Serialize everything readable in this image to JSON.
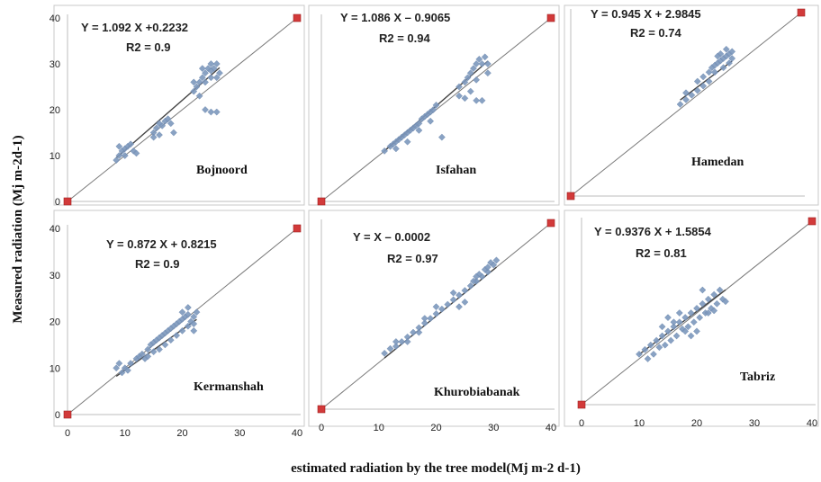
{
  "figure": {
    "ylabel": "Measured radiation (Mj m-2d-1)",
    "xlabel": "estimated radiation by the tree model(Mj m-2 d-1)"
  },
  "chart_data": [
    {
      "type": "scatter",
      "station": "Bojnoord",
      "equation": "Y = 1.092 X +0.2232",
      "r2": "R2 = 0.9",
      "fit": {
        "slope": 1.092,
        "intercept": 0.2232
      },
      "xlim": [
        0,
        40
      ],
      "ylim": [
        0,
        40
      ],
      "xticks": [],
      "yticks": [
        "0",
        "10",
        "20",
        "30",
        "40"
      ],
      "points": [
        [
          8.5,
          9
        ],
        [
          9,
          10
        ],
        [
          9.5,
          11
        ],
        [
          10,
          11.5
        ],
        [
          10.5,
          12
        ],
        [
          11,
          12.5
        ],
        [
          11.5,
          11
        ],
        [
          9,
          12
        ],
        [
          10,
          10
        ],
        [
          12,
          10.5
        ],
        [
          15,
          15
        ],
        [
          15.5,
          16
        ],
        [
          16,
          17
        ],
        [
          16.5,
          16.5
        ],
        [
          17,
          17.5
        ],
        [
          17.5,
          18
        ],
        [
          16,
          14.5
        ],
        [
          18,
          17
        ],
        [
          15,
          14
        ],
        [
          18.5,
          15
        ],
        [
          22,
          24
        ],
        [
          22.5,
          25
        ],
        [
          23,
          26
        ],
        [
          23.5,
          27
        ],
        [
          24,
          28
        ],
        [
          24.5,
          29
        ],
        [
          25,
          30
        ],
        [
          25.5,
          29
        ],
        [
          26,
          30
        ],
        [
          26.5,
          28
        ],
        [
          23,
          23
        ],
        [
          24,
          26
        ],
        [
          25,
          27
        ],
        [
          24,
          20
        ],
        [
          25,
          19.5
        ],
        [
          26,
          19.5
        ],
        [
          22,
          26
        ],
        [
          23.5,
          29
        ],
        [
          25,
          28.5
        ],
        [
          26,
          27
        ]
      ]
    },
    {
      "type": "scatter",
      "station": "Isfahan",
      "equation": "Y = 1.086 X – 0.9065",
      "r2": "R2 = 0.94",
      "fit": {
        "slope": 1.086,
        "intercept": -0.9065
      },
      "xlim": [
        0,
        40
      ],
      "ylim": [
        0,
        40
      ],
      "xticks": [],
      "yticks": [],
      "points": [
        [
          11,
          11
        ],
        [
          12,
          12
        ],
        [
          12.5,
          12.5
        ],
        [
          13,
          13
        ],
        [
          13.5,
          13.5
        ],
        [
          14,
          14
        ],
        [
          14.5,
          14.5
        ],
        [
          15,
          15
        ],
        [
          15.5,
          15.5
        ],
        [
          16,
          16
        ],
        [
          16.5,
          16.5
        ],
        [
          17,
          17
        ],
        [
          17.5,
          18
        ],
        [
          18,
          18.5
        ],
        [
          18.5,
          19
        ],
        [
          19,
          19.5
        ],
        [
          19.5,
          20
        ],
        [
          20,
          21
        ],
        [
          13,
          11.5
        ],
        [
          15,
          13
        ],
        [
          17,
          15.5
        ],
        [
          19,
          17.5
        ],
        [
          21,
          14
        ],
        [
          24,
          25
        ],
        [
          25,
          26
        ],
        [
          25.5,
          27
        ],
        [
          26,
          28
        ],
        [
          26.5,
          29
        ],
        [
          27,
          30
        ],
        [
          27.5,
          31
        ],
        [
          28,
          30
        ],
        [
          28.5,
          31.5
        ],
        [
          29,
          30
        ],
        [
          26,
          24
        ],
        [
          27,
          22
        ],
        [
          28,
          22
        ],
        [
          25,
          22.5
        ],
        [
          24,
          23
        ],
        [
          27,
          26.5
        ],
        [
          29,
          28
        ]
      ]
    },
    {
      "type": "scatter",
      "station": "Hamedan",
      "equation": "Y = 0.945 X + 2.9845",
      "r2": "R2 = 0.74",
      "fit": {
        "slope": 0.945,
        "intercept": 2.9845
      },
      "xlim": [
        0,
        40
      ],
      "ylim": [
        0,
        40
      ],
      "xticks": [],
      "yticks": [],
      "points": [
        [
          19,
          20
        ],
        [
          20,
          21
        ],
        [
          21,
          22
        ],
        [
          22,
          25
        ],
        [
          23,
          26
        ],
        [
          24,
          27
        ],
        [
          24.5,
          28
        ],
        [
          25,
          28.5
        ],
        [
          25.5,
          29
        ],
        [
          26,
          29.5
        ],
        [
          26.5,
          30
        ],
        [
          27,
          30.5
        ],
        [
          27.5,
          31
        ],
        [
          28,
          30
        ],
        [
          25,
          27
        ],
        [
          26,
          31
        ],
        [
          27,
          32
        ],
        [
          28,
          31.5
        ],
        [
          24,
          25
        ],
        [
          23,
          24
        ],
        [
          25.5,
          30.5
        ],
        [
          26.5,
          28
        ],
        [
          27.5,
          29
        ],
        [
          20,
          22.5
        ],
        [
          22,
          23
        ]
      ]
    },
    {
      "type": "scatter",
      "station": "Kermanshah",
      "equation": "Y = 0.872 X + 0.8215",
      "r2": "R2 = 0.9",
      "fit": {
        "slope": 0.872,
        "intercept": 0.8215
      },
      "xlim": [
        0,
        40
      ],
      "ylim": [
        0,
        40
      ],
      "xticks": [
        "0",
        "10",
        "20",
        "30",
        "40"
      ],
      "yticks": [
        "0",
        "10",
        "20",
        "30",
        "40"
      ],
      "points": [
        [
          8.5,
          10
        ],
        [
          9,
          11
        ],
        [
          9.5,
          9
        ],
        [
          10,
          10
        ],
        [
          10.5,
          9.5
        ],
        [
          11,
          11
        ],
        [
          12,
          12
        ],
        [
          12.5,
          12.5
        ],
        [
          13,
          13
        ],
        [
          13.5,
          12
        ],
        [
          14,
          14
        ],
        [
          14.5,
          15
        ],
        [
          15,
          15.5
        ],
        [
          15.5,
          16
        ],
        [
          16,
          16.5
        ],
        [
          16.5,
          17
        ],
        [
          17,
          17.5
        ],
        [
          17.5,
          18
        ],
        [
          18,
          18.5
        ],
        [
          18.5,
          19
        ],
        [
          19,
          19.5
        ],
        [
          19.5,
          20
        ],
        [
          20,
          20.5
        ],
        [
          20.5,
          21
        ],
        [
          21,
          21.5
        ],
        [
          21.5,
          20
        ],
        [
          22,
          21
        ],
        [
          22.5,
          22
        ],
        [
          18,
          16
        ],
        [
          19,
          17
        ],
        [
          20,
          18
        ],
        [
          21,
          19
        ],
        [
          22,
          18
        ],
        [
          16,
          14
        ],
        [
          17,
          15
        ],
        [
          15,
          13.5
        ],
        [
          14,
          12.5
        ],
        [
          20,
          22
        ],
        [
          21,
          23
        ],
        [
          22,
          19.5
        ]
      ]
    },
    {
      "type": "scatter",
      "station": "Khurobiabanak",
      "equation": "Y = X – 0.0002",
      "r2": "R2 = 0.97",
      "fit": {
        "slope": 1.0,
        "intercept": -0.0002
      },
      "xlim": [
        0,
        40
      ],
      "ylim": [
        0,
        40
      ],
      "xticks": [
        "0",
        "10",
        "20",
        "30",
        "40"
      ],
      "yticks": [],
      "points": [
        [
          11,
          12
        ],
        [
          12,
          13
        ],
        [
          13,
          13.5
        ],
        [
          14,
          14.5
        ],
        [
          15,
          15.5
        ],
        [
          16,
          16.5
        ],
        [
          17,
          17.5
        ],
        [
          18,
          18.5
        ],
        [
          19,
          19.5
        ],
        [
          20,
          20.5
        ],
        [
          21,
          21.5
        ],
        [
          22,
          22.5
        ],
        [
          23,
          23.5
        ],
        [
          24,
          24.5
        ],
        [
          25,
          25.5
        ],
        [
          26,
          26.5
        ],
        [
          27,
          27.5
        ],
        [
          28,
          28.5
        ],
        [
          29,
          29.5
        ],
        [
          30,
          31
        ],
        [
          30.5,
          32
        ],
        [
          29.5,
          31.5
        ],
        [
          28.5,
          30
        ],
        [
          27.5,
          29
        ],
        [
          26.5,
          27.5
        ],
        [
          23,
          25
        ],
        [
          24,
          22
        ],
        [
          25,
          23
        ],
        [
          20,
          22
        ],
        [
          18,
          19.5
        ],
        [
          13,
          14.5
        ],
        [
          15,
          14.5
        ],
        [
          17,
          16.5
        ],
        [
          27,
          28.5
        ],
        [
          29,
          30.5
        ]
      ]
    },
    {
      "type": "scatter",
      "station": "Tabriz",
      "equation": "Y = 0.9376 X + 1.5854",
      "r2": "R2 = 0.81",
      "fit": {
        "slope": 0.9376,
        "intercept": 1.5854
      },
      "xlim": [
        0,
        40
      ],
      "ylim": [
        0,
        40
      ],
      "xticks": [
        "0",
        "10",
        "20",
        "30",
        "40"
      ],
      "yticks": [],
      "points": [
        [
          10,
          11
        ],
        [
          11,
          12
        ],
        [
          11.5,
          10
        ],
        [
          12,
          13
        ],
        [
          12.5,
          11
        ],
        [
          13,
          14
        ],
        [
          13.5,
          12.5
        ],
        [
          14,
          15
        ],
        [
          14.5,
          13
        ],
        [
          15,
          16
        ],
        [
          15.5,
          14
        ],
        [
          16,
          17
        ],
        [
          16.5,
          15
        ],
        [
          17,
          18
        ],
        [
          17.5,
          16.5
        ],
        [
          18,
          19
        ],
        [
          18.5,
          17
        ],
        [
          19,
          20
        ],
        [
          19.5,
          18
        ],
        [
          20,
          21
        ],
        [
          20.5,
          19
        ],
        [
          21,
          22
        ],
        [
          21.5,
          20
        ],
        [
          22,
          23
        ],
        [
          22.5,
          21
        ],
        [
          23,
          24
        ],
        [
          23.5,
          22
        ],
        [
          24,
          25
        ],
        [
          24.5,
          23
        ],
        [
          25,
          22.5
        ],
        [
          16,
          18
        ],
        [
          17,
          20
        ],
        [
          18,
          16
        ],
        [
          19,
          15
        ],
        [
          20,
          16
        ],
        [
          15,
          19
        ],
        [
          14,
          17
        ],
        [
          21,
          25
        ],
        [
          22,
          20
        ],
        [
          23,
          20.5
        ]
      ]
    }
  ]
}
